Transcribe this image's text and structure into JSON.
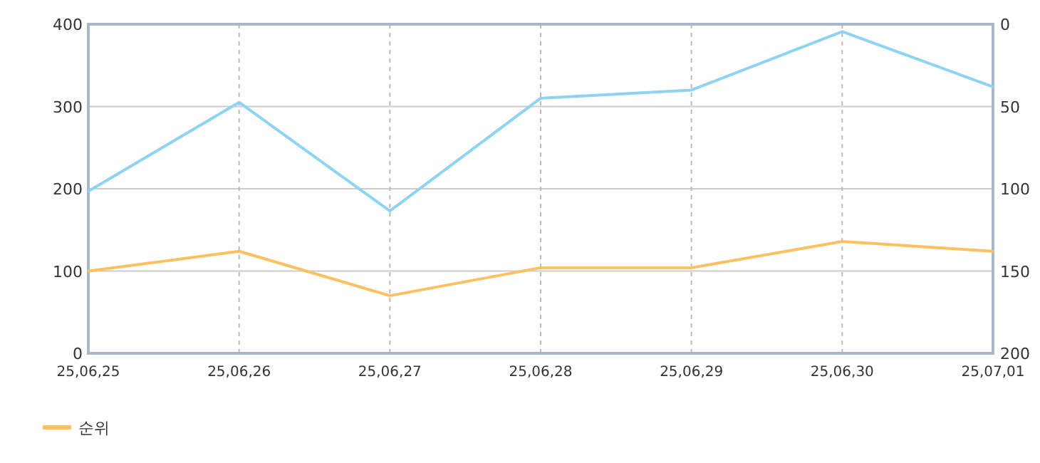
{
  "chart_data": {
    "type": "line",
    "categories": [
      "25,06,25",
      "25,06,26",
      "25,06,27",
      "25,06,28",
      "25,06,29",
      "25,06,30",
      "25,07,01"
    ],
    "series": [
      {
        "color": "#8fd3f2",
        "values": [
          197,
          305,
          173,
          310,
          320,
          391,
          324
        ]
      },
      {
        "name": "순위",
        "color": "#fbc060",
        "axis": "y2",
        "values": [
          150,
          138,
          165,
          148,
          148,
          132,
          138
        ]
      }
    ],
    "ylim": [
      0,
      400
    ],
    "yticks": [
      0,
      100,
      200,
      300,
      400
    ],
    "y2lim": [
      200,
      0
    ],
    "y2ticks": [
      0,
      50,
      100,
      150,
      200
    ],
    "grid": true,
    "legend": "bottom left"
  }
}
